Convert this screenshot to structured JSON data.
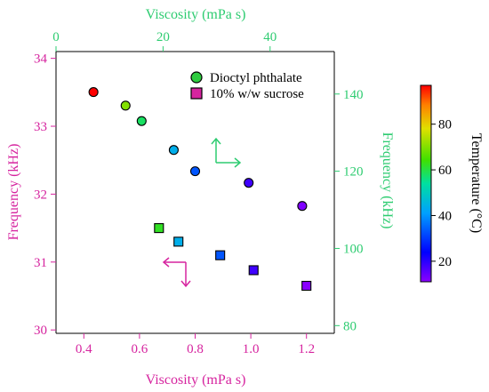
{
  "chart_data": {
    "type": "scatter",
    "colors": {
      "bottom_left_axes": "#d6249f",
      "top_right_axes": "#2ecc71",
      "frame": "#000000"
    },
    "xlabel_bottom": "Viscosity (mPa s)",
    "xlabel_top": "Viscosity (mPa s)",
    "ylabel_left": "Frequency (kHz)",
    "ylabel_right": "Frequency (kHz)",
    "colorbar_label": "Temperature (°C)",
    "x_bottom": {
      "lim": [
        0.3,
        1.3
      ],
      "ticks": [
        0.4,
        0.6,
        0.8,
        1.0,
        1.2
      ],
      "tick_labels": [
        "0.4",
        "0.6",
        "0.8",
        "1.0",
        "1.2"
      ]
    },
    "x_top": {
      "lim": [
        0,
        52
      ],
      "ticks": [
        0,
        20,
        40
      ],
      "tick_labels": [
        "0",
        "20",
        "40"
      ]
    },
    "y_left": {
      "lim": [
        29.95,
        34.1
      ],
      "ticks": [
        30,
        31,
        32,
        33,
        34
      ],
      "tick_labels": [
        "30",
        "31",
        "32",
        "33",
        "34"
      ]
    },
    "y_right": {
      "lim": [
        78,
        151
      ],
      "ticks": [
        80,
        100,
        120,
        140
      ],
      "tick_labels": [
        "80",
        "100",
        "120",
        "140"
      ]
    },
    "colorbar": {
      "lim": [
        11,
        97
      ],
      "ticks": [
        20,
        40,
        60,
        80
      ],
      "tick_labels": [
        "20",
        "40",
        "60",
        "80"
      ]
    },
    "legend": {
      "position": "top-right",
      "entries": [
        "Dioctyl phthalate",
        "10% w/w sucrose"
      ]
    },
    "series": [
      {
        "name": "Dioctyl phthalate",
        "marker": "circle",
        "axes": "top-right",
        "points": [
          {
            "x": 7,
            "y": 140.5,
            "t": 97
          },
          {
            "x": 13,
            "y": 137.0,
            "t": 70
          },
          {
            "x": 16,
            "y": 133.0,
            "t": 58
          },
          {
            "x": 22,
            "y": 125.5,
            "t": 44
          },
          {
            "x": 26,
            "y": 120.0,
            "t": 33
          },
          {
            "x": 36,
            "y": 117.0,
            "t": 18
          },
          {
            "x": 46,
            "y": 111.0,
            "t": 12
          }
        ]
      },
      {
        "name": "10% w/w sucrose",
        "marker": "square",
        "axes": "bottom-left",
        "points": [
          {
            "x": 0.67,
            "y": 31.5,
            "t": 62
          },
          {
            "x": 0.74,
            "y": 31.3,
            "t": 44
          },
          {
            "x": 0.89,
            "y": 31.1,
            "t": 33
          },
          {
            "x": 1.01,
            "y": 30.88,
            "t": 18
          },
          {
            "x": 1.2,
            "y": 30.65,
            "t": 11
          }
        ]
      }
    ]
  }
}
